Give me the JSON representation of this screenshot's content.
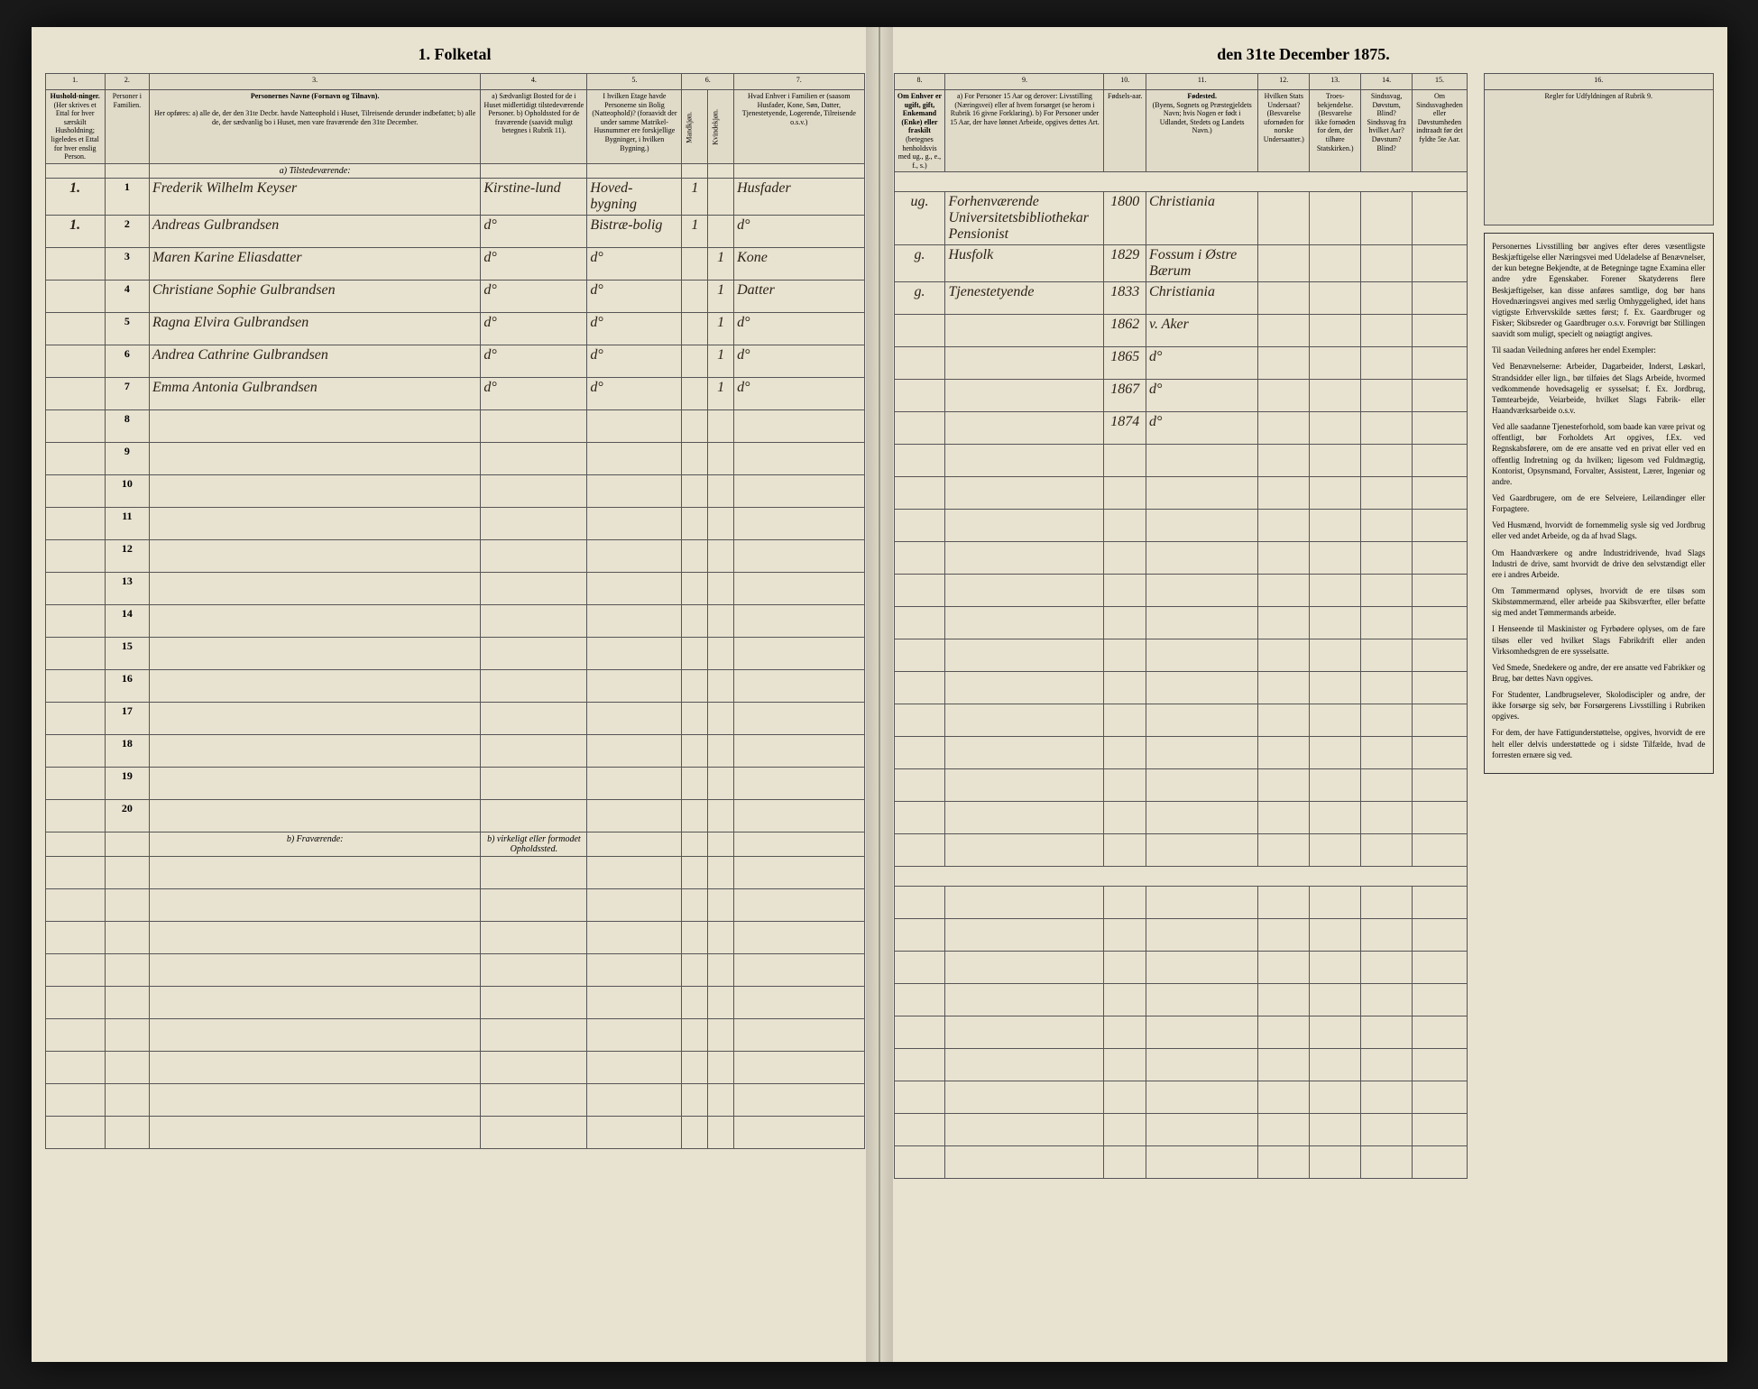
{
  "document": {
    "title_left": "1. Folketal",
    "title_right": "den 31te December 1875."
  },
  "columns_left": {
    "nums": [
      "1.",
      "2.",
      "3.",
      "4.",
      "5.",
      "6.",
      "7."
    ],
    "h1": "Hushold-ninger.",
    "h1_sub": "(Her skrives et Ettal for hver særskilt Husholdning; ligeledes et Ettal for hver enslig Person.",
    "h2": "Personer i Familien.",
    "h3_title": "Personernes Navne (Fornavn og Tilnavn).",
    "h3_sub": "Her opføres: a) alle de, der den 31te Decbr. havde Natteophold i Huset, Tilreisende derunder indbefattet; b) alle de, der sædvanlig bo i Huset, men vare fraværende den 31te December.",
    "h4": "a) Sædvanligt Bosted for de i Huset midlertidigt tilstedeværende Personer. b) Opholdssted for de fraværende (saavidt muligt betegnes i Rubrik 11).",
    "h5": "I hvilken Etage havde Personerne sin Bolig (Natteophold)? (foraavidt der under samme Matrikel-Husnummer ere forskjellige Bygninger, i hvilken Bygning.)",
    "h6": "Kjøn-net. (a: Mandkjøn, b: Kvindekjøn)",
    "h6a": "Mandkjøn.",
    "h6b": "Kvindekjøn.",
    "h7": "Hvad Enhver i Familien er (saasom Husfader, Kone, Søn, Datter, Tjenestetyende, Logerende, Tilreisende o.s.v.)",
    "section_a": "a) Tilstedeværende:",
    "section_b": "b) Fraværende:",
    "section_b_col": "b) virkeligt eller formodet Opholdssted."
  },
  "columns_right": {
    "nums": [
      "8.",
      "9.",
      "10.",
      "11.",
      "12.",
      "13.",
      "14.",
      "15.",
      "16."
    ],
    "h8_title": "Om Enhver er ugift, gift, Enkemand (Enke) eller fraskilt",
    "h8_sub": "(betegnes henholdsvis med ug., g., e., f., s.)",
    "h9": "a) For Personer 15 Aar og derover: Livsstilling (Næringsvei) eller af hvem forsørget (se herom i Rubrik 16 givne Forklaring). b) For Personer under 15 Aar, der have lønnet Arbeide, opgives dettes Art.",
    "h10": "Fødsels-aar.",
    "h11_title": "Fødested.",
    "h11_sub": "(Byens, Sognets og Præstegjeldets Navn; hvis Nogen er født i Udlandet, Stedets og Landets Navn.)",
    "h12": "Hvilken Stats Undersaat? (Besvarelse ufornøden for norske Undersaatter.)",
    "h13": "Troes-bekjendelse. (Besvarelse ikke fornøden for dem, der tilhøre Statskirken.)",
    "h14": "Sindssvag, Døvstum, Blind? Sindssvag fra hvilket Aar? Døvstum? Blind?",
    "h15": "Om Sindssvagheden eller Døvstumheden indtraadt før det fyldte 5te Aar.",
    "h16": "Regler for Udfyldningen af Rubrik 9."
  },
  "rows": [
    {
      "n1": "1.",
      "n2": "1",
      "name": "Frederik Wilhelm Keyser",
      "bosted": "Kirstine-lund",
      "etage": "Hoved-bygning",
      "mk": "1",
      "kk": "",
      "rel": "Husfader",
      "civ": "ug.",
      "occ": "Forhenværende Universitetsbibliothekar Pensionist",
      "year": "1800",
      "place": "Christiania"
    },
    {
      "n1": "1.",
      "n2": "2",
      "name": "Andreas Gulbrandsen",
      "bosted": "d°",
      "etage": "Bistræ-bolig",
      "mk": "1",
      "kk": "",
      "rel": "d°",
      "civ": "g.",
      "occ": "Husfolk",
      "year": "1829",
      "place": "Fossum i Østre Bærum"
    },
    {
      "n1": "",
      "n2": "3",
      "name": "Maren Karine Eliasdatter",
      "bosted": "d°",
      "etage": "d°",
      "mk": "",
      "kk": "1",
      "rel": "Kone",
      "civ": "g.",
      "occ": "Tjenestetyende",
      "year": "1833",
      "place": "Christiania"
    },
    {
      "n1": "",
      "n2": "4",
      "name": "Christiane Sophie Gulbrandsen",
      "bosted": "d°",
      "etage": "d°",
      "mk": "",
      "kk": "1",
      "rel": "Datter",
      "civ": "",
      "occ": "",
      "year": "1862",
      "place": "v. Aker"
    },
    {
      "n1": "",
      "n2": "5",
      "name": "Ragna Elvira Gulbrandsen",
      "bosted": "d°",
      "etage": "d°",
      "mk": "",
      "kk": "1",
      "rel": "d°",
      "civ": "",
      "occ": "",
      "year": "1865",
      "place": "d°"
    },
    {
      "n1": "",
      "n2": "6",
      "name": "Andrea Cathrine Gulbrandsen",
      "bosted": "d°",
      "etage": "d°",
      "mk": "",
      "kk": "1",
      "rel": "d°",
      "civ": "",
      "occ": "",
      "year": "1867",
      "place": "d°"
    },
    {
      "n1": "",
      "n2": "7",
      "name": "Emma Antonia Gulbrandsen",
      "bosted": "d°",
      "etage": "d°",
      "mk": "",
      "kk": "1",
      "rel": "d°",
      "civ": "",
      "occ": "",
      "year": "1874",
      "place": "d°"
    }
  ],
  "empty_rows_top": [
    "8",
    "9",
    "10",
    "11",
    "12",
    "13",
    "14",
    "15",
    "16",
    "17",
    "18",
    "19",
    "20"
  ],
  "empty_rows_bottom": [
    "",
    "",
    "",
    "",
    "",
    "",
    "",
    "",
    ""
  ],
  "rules": {
    "title": "Regler for Udfyldningen af Rubrik 9.",
    "paras": [
      "Personernes Livsstilling bør angives efter deres væsentligste Beskjæftigelse eller Næringsvei med Udeladelse af Benævnelser, der kun betegne Bekjendte, at de Betegninge tagne Examina eller andre ydre Egenskaber. Forener Skatyderens flere Beskjæftigelser, kan disse anføres samtlige, dog bør hans Hovednæringsvei angives med særlig Omhyggelighed, idet hans vigtigste Erhvervskilde sættes først; f. Ex. Gaardbruger og Fisker; Skibsreder og Gaardbruger o.s.v. Forøvrigt bør Stillingen saavidt som muligt, specielt og nøiagtigt angives.",
      "Til saadan Veiledning anføres her endel Exempler:",
      "Ved Benævnelserne: Arbeider, Dagarbeider, Inderst, Løskarl, Strandsidder eller lign., bør tilføies det Slags Arbeide, hvormed vedkommende hovedsagelig er sysselsat; f. Ex. Jordbrug, Tømtearbejde, Veiarbeide, hvilket Slags Fabrik- eller Haandværksarbeide o.s.v.",
      "Ved alle saadanne Tjenesteforhold, som baade kan være privat og offentligt, bør Forholdets Art opgives, f.Ex. ved Regnskabsførere, om de ere ansatte ved en privat eller ved en offentlig Indretning og da hvilken; ligesom ved Fuldmægtig, Kontorist, Opsynsmand, Forvalter, Assistent, Lærer, Ingeniør og andre.",
      "Ved Gaardbrugere, om de ere Selveiere, Leilændinger eller Forpagtere.",
      "Ved Husmænd, hvorvidt de fornemmelig sysle sig ved Jordbrug eller ved andet Arbeide, og da af hvad Slags.",
      "Om Haandværkere og andre Industridrivende, hvad Slags Industri de drive, samt hvorvidt de drive den selvstændigt eller ere i andres Arbeide.",
      "Om Tømmermænd oplyses, hvorvidt de ere tilsøs som Skibstømmermænd, eller arbeide paa Skibsværfter, eller befatte sig med andet Tømmermands arbeide.",
      "I Henseende til Maskinister og Fyrbødere oplyses, om de fare tilsøs eller ved hvilket Slags Fabrikdrift eller anden Virksomhedsgren de ere sysselsatte.",
      "Ved Smede, Snedekere og andre, der ere ansatte ved Fabrikker og Brug, bør dettes Navn opgives.",
      "For Studenter, Landbrugselever, Skolodiscipler og andre, der ikke forsørge sig selv, bør Forsørgerens Livsstilling i Rubriken opgives.",
      "For dem, der have Fattigunderstøttelse, opgives, hvorvidt de ere helt eller delvis understøttede og i sidste Tilfælde, hvad de forresten ernære sig ved."
    ]
  }
}
